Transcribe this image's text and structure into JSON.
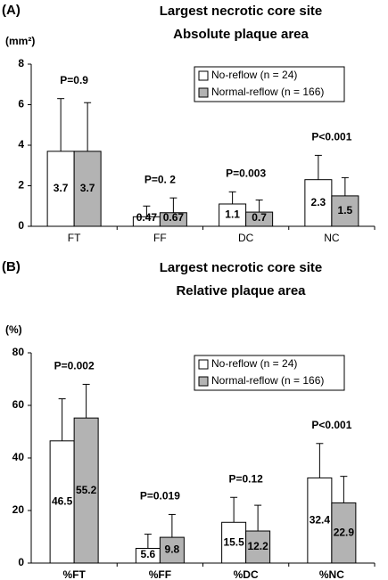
{
  "chart_data": [
    {
      "type": "bar",
      "panel_label": "(A)",
      "title": "Largest necrotic core site",
      "subtitle": "Absolute plaque area",
      "ylabel": "(mm²)",
      "categories": [
        "FT",
        "FF",
        "DC",
        "NC"
      ],
      "series": [
        {
          "name": "No-reflow (n = 24)",
          "color": "#ffffff",
          "values": [
            3.7,
            0.47,
            1.1,
            2.3
          ],
          "errors": [
            2.6,
            0.53,
            0.6,
            1.2
          ]
        },
        {
          "name": "Normal-reflow (n = 166)",
          "color": "#b3b3b3",
          "values": [
            3.7,
            0.67,
            0.7,
            1.5
          ],
          "errors": [
            2.4,
            0.73,
            0.6,
            0.9
          ]
        }
      ],
      "annotations": [
        "P=0.9",
        "P=0. 2",
        "P=0.003",
        "P<0.001"
      ],
      "ylim": [
        0,
        8
      ],
      "yticks": [
        0,
        2,
        4,
        6,
        8
      ],
      "legend": "upper-right"
    },
    {
      "type": "bar",
      "panel_label": "(B)",
      "title": "Largest necrotic core site",
      "subtitle": "Relative plaque area",
      "ylabel": "(%)",
      "categories": [
        "%FT",
        "%FF",
        "%DC",
        "%NC"
      ],
      "series": [
        {
          "name": "No-reflow (n = 24)",
          "color": "#ffffff",
          "values": [
            46.5,
            5.6,
            15.5,
            32.4
          ],
          "errors": [
            16,
            5.4,
            9.5,
            13.1
          ]
        },
        {
          "name": "Normal-reflow (n = 166)",
          "color": "#b3b3b3",
          "values": [
            55.2,
            9.8,
            12.2,
            22.9
          ],
          "errors": [
            12.8,
            8.7,
            9.8,
            10.1
          ]
        }
      ],
      "annotations": [
        "P=0.002",
        "P=0.019",
        "P=0.12",
        "P<0.001"
      ],
      "ylim": [
        0,
        80
      ],
      "yticks": [
        0,
        20,
        40,
        60,
        80
      ],
      "legend": "upper-right"
    }
  ]
}
